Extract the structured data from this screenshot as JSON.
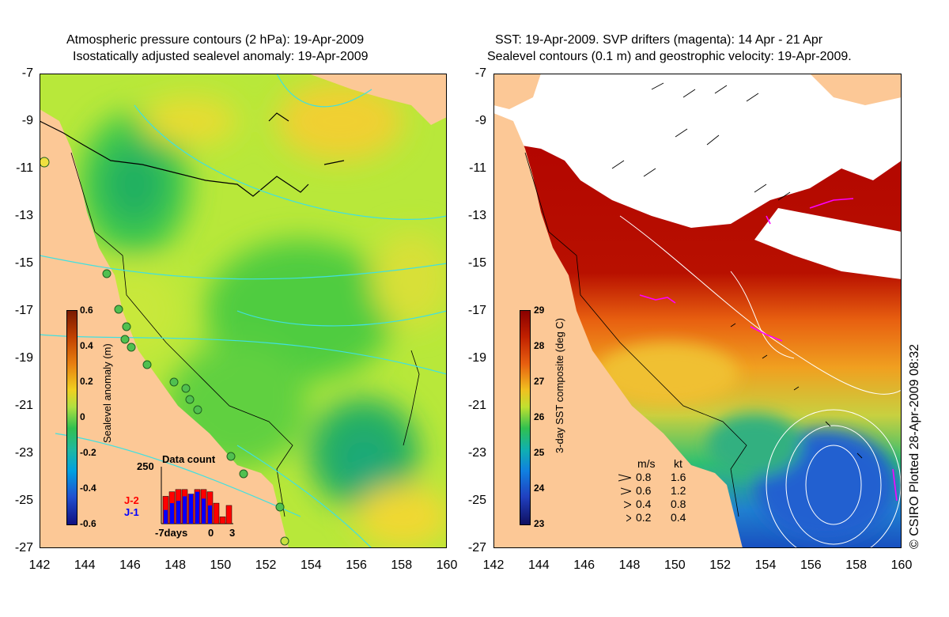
{
  "left_panel": {
    "title_line1": "Atmospheric pressure contours (2 hPa): 19-Apr-2009",
    "title_line2": "Isostatically adjusted sealevel anomaly: 19-Apr-2009",
    "colorbar": {
      "label": "Sealevel anomaly (m)",
      "ticks": [
        "0.6",
        "0.4",
        "0.2",
        "0",
        "-0.2",
        "-0.4",
        "-0.6"
      ]
    },
    "inset": {
      "title": "Data count",
      "ymax_label": "250",
      "xlabels": [
        "-7days",
        "0",
        "3"
      ],
      "legend": [
        "J-2",
        "J-1"
      ],
      "legend_colors": [
        "#ff0000",
        "#0000ff"
      ],
      "j2_counts": [
        120,
        140,
        150,
        150,
        130,
        150,
        150,
        140,
        90,
        30,
        80
      ],
      "j1_counts": [
        60,
        90,
        100,
        120,
        130,
        140,
        110,
        80,
        0,
        0,
        0
      ]
    }
  },
  "right_panel": {
    "title_line1": "SST: 19-Apr-2009. SVP drifters (magenta): 14 Apr - 21 Apr",
    "title_line2": "Sealevel contours (0.1 m) and geostrophic velocity: 19-Apr-2009.",
    "colorbar": {
      "label": "3-day SST composite (deg C)",
      "ticks": [
        "29",
        "28",
        "27",
        "26",
        "25",
        "24",
        "23"
      ]
    },
    "velocity_legend": {
      "header_ms": "m/s",
      "header_kt": "kt",
      "rows": [
        {
          "ms": "0.8",
          "kt": "1.6"
        },
        {
          "ms": "0.6",
          "kt": "1.2"
        },
        {
          "ms": "0.4",
          "kt": "0.8"
        },
        {
          "ms": "0.2",
          "kt": "0.4"
        }
      ]
    }
  },
  "axes": {
    "lat_ticks": [
      "-7",
      "-9",
      "-11",
      "-13",
      "-15",
      "-17",
      "-19",
      "-21",
      "-23",
      "-25",
      "-27"
    ],
    "lon_ticks": [
      "142",
      "144",
      "146",
      "148",
      "150",
      "152",
      "154",
      "156",
      "158",
      "160"
    ]
  },
  "credit": "© CSIRO Plotted 28-Apr-2009 08:32",
  "colors": {
    "land": "#fcc896",
    "cloud": "#ffffff",
    "contour_cyan": "#40e0e0",
    "drifter_magenta": "#ff00ff"
  }
}
